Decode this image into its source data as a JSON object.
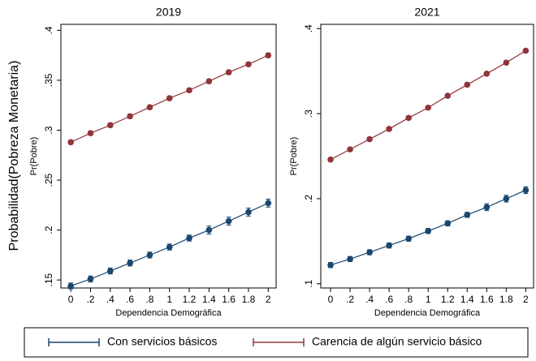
{
  "supylabel": "Probabilidad(Pobreza Monetaria)",
  "legend": {
    "position": "bottom"
  },
  "chart_data": [
    {
      "type": "line",
      "title": "2019",
      "xlabel": "Dependencia Demográfica",
      "ylabel": "Pr(Pobre)",
      "x": [
        0,
        0.2,
        0.4,
        0.6,
        0.8,
        1,
        1.2,
        1.4,
        1.6,
        1.8,
        2
      ],
      "xlim": [
        -0.1,
        2.08
      ],
      "xticks": [
        0,
        {
          "value": 0.2,
          "label": ".2"
        },
        {
          "value": 0.4,
          "label": ".4"
        },
        {
          "value": 0.6,
          "label": ".6"
        },
        {
          "value": 0.8,
          "label": ".8"
        },
        1,
        1.2,
        1.4,
        1.6,
        1.8,
        2
      ],
      "ylim": [
        0.142,
        0.406
      ],
      "yticks": [
        {
          "value": 0.15,
          "label": ".15"
        },
        {
          "value": 0.2,
          "label": ".2"
        },
        {
          "value": 0.25,
          "label": ".25"
        },
        {
          "value": 0.3,
          "label": ".3"
        },
        {
          "value": 0.35,
          "label": ".35"
        },
        {
          "value": 0.4,
          "label": ".4"
        }
      ],
      "series": [
        {
          "name": "Con servicios básicos",
          "color": "#1a476f",
          "values": [
            0.144,
            0.151,
            0.159,
            0.167,
            0.175,
            0.183,
            0.192,
            0.2,
            0.209,
            0.218,
            0.227
          ],
          "errors": [
            0.003,
            0.003,
            0.003,
            0.003,
            0.003,
            0.003,
            0.003,
            0.004,
            0.004,
            0.004,
            0.004
          ]
        },
        {
          "name": "Carencia de algún servicio básico",
          "color": "#90353b",
          "values": [
            0.288,
            0.297,
            0.305,
            0.314,
            0.323,
            0.332,
            0.34,
            0.349,
            0.358,
            0.366,
            0.375
          ],
          "errors": [
            0.002,
            0.002,
            0.002,
            0.002,
            0.002,
            0.002,
            0.002,
            0.002,
            0.002,
            0.002,
            0.002
          ]
        }
      ]
    },
    {
      "type": "line",
      "title": "2021",
      "xlabel": "Dependencia Demográfica",
      "ylabel": "Pr(Pobre)",
      "x": [
        0,
        0.2,
        0.4,
        0.6,
        0.8,
        1,
        1.2,
        1.4,
        1.6,
        1.8,
        2
      ],
      "xlim": [
        -0.1,
        2.08
      ],
      "xticks": [
        0,
        {
          "value": 0.2,
          "label": ".2"
        },
        {
          "value": 0.4,
          "label": ".4"
        },
        {
          "value": 0.6,
          "label": ".6"
        },
        {
          "value": 0.8,
          "label": ".8"
        },
        1,
        1.2,
        1.4,
        1.6,
        1.8,
        2
      ],
      "ylim": [
        0.095,
        0.405
      ],
      "yticks": [
        {
          "value": 0.1,
          "label": ".1"
        },
        {
          "value": 0.2,
          "label": ".2"
        },
        {
          "value": 0.3,
          "label": ".3"
        },
        {
          "value": 0.4,
          "label": ".4"
        }
      ],
      "series": [
        {
          "color": "#1a476f",
          "values": [
            0.122,
            0.129,
            0.137,
            0.145,
            0.153,
            0.162,
            0.171,
            0.181,
            0.19,
            0.2,
            0.21
          ],
          "errors": [
            0.003,
            0.003,
            0.003,
            0.003,
            0.003,
            0.003,
            0.003,
            0.003,
            0.004,
            0.004,
            0.004
          ]
        },
        {
          "color": "#90353b",
          "values": [
            0.246,
            0.258,
            0.27,
            0.282,
            0.295,
            0.307,
            0.321,
            0.334,
            0.347,
            0.36,
            0.374
          ],
          "errors": [
            0.002,
            0.002,
            0.002,
            0.002,
            0.002,
            0.002,
            0.002,
            0.002,
            0.002,
            0.002,
            0.002
          ]
        }
      ]
    }
  ]
}
